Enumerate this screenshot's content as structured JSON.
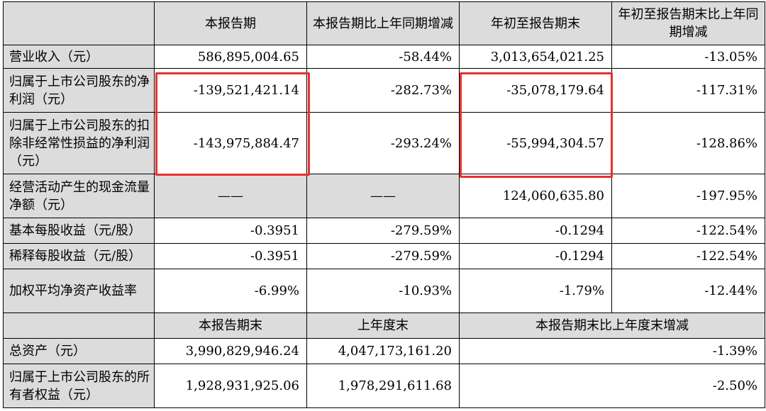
{
  "header": {
    "corner": "",
    "col1": "本报告期",
    "col2": "本报告期比上年同期增减",
    "col3": "年初至报告期末",
    "col4": "年初至报告期末比上年同期增减"
  },
  "rows": [
    {
      "label": "营业收入（元）",
      "v1": "586,895,004.65",
      "v2": "-58.44%",
      "v3": "3,013,654,021.25",
      "v4": "-13.05%"
    },
    {
      "label": "归属于上市公司股东的净利润（元）",
      "v1": "-139,521,421.14",
      "v2": "-282.73%",
      "v3": "-35,078,179.64",
      "v4": "-117.31%"
    },
    {
      "label": "归属于上市公司股东的扣除非经常性损益的净利润（元）",
      "v1": "-143,975,884.47",
      "v2": "-293.24%",
      "v3": "-55,994,304.57",
      "v4": "-128.86%"
    },
    {
      "label": "经营活动产生的现金流量净额（元）",
      "v1": "——",
      "v2": "——",
      "v3": "124,060,635.80",
      "v4": "-197.95%"
    },
    {
      "label": "基本每股收益（元/股）",
      "v1": "-0.3951",
      "v2": "-279.59%",
      "v3": "-0.1294",
      "v4": "-122.54%"
    },
    {
      "label": "稀释每股收益（元/股）",
      "v1": "-0.3951",
      "v2": "-279.59%",
      "v3": "-0.1294",
      "v4": "-122.54%"
    },
    {
      "label": "加权平均净资产收益率",
      "v1": "-6.99%",
      "v2": "-10.93%",
      "v3": "-1.79%",
      "v4": "-12.44%"
    }
  ],
  "header2": {
    "col1": "本报告期末",
    "col2": "上年度末",
    "col3": "本报告期末比上年度末增减"
  },
  "rows2": [
    {
      "label": "总资产（元）",
      "v1": "3,990,829,946.24",
      "v2": "4,047,173,161.20",
      "v3": "-1.39%"
    },
    {
      "label": "归属于上市公司股东的所有者权益（元）",
      "v1": "1,928,931,925.06",
      "v2": "1,978,291,611.68",
      "v3": "-2.50%"
    }
  ],
  "highlight_color": "#e83030"
}
